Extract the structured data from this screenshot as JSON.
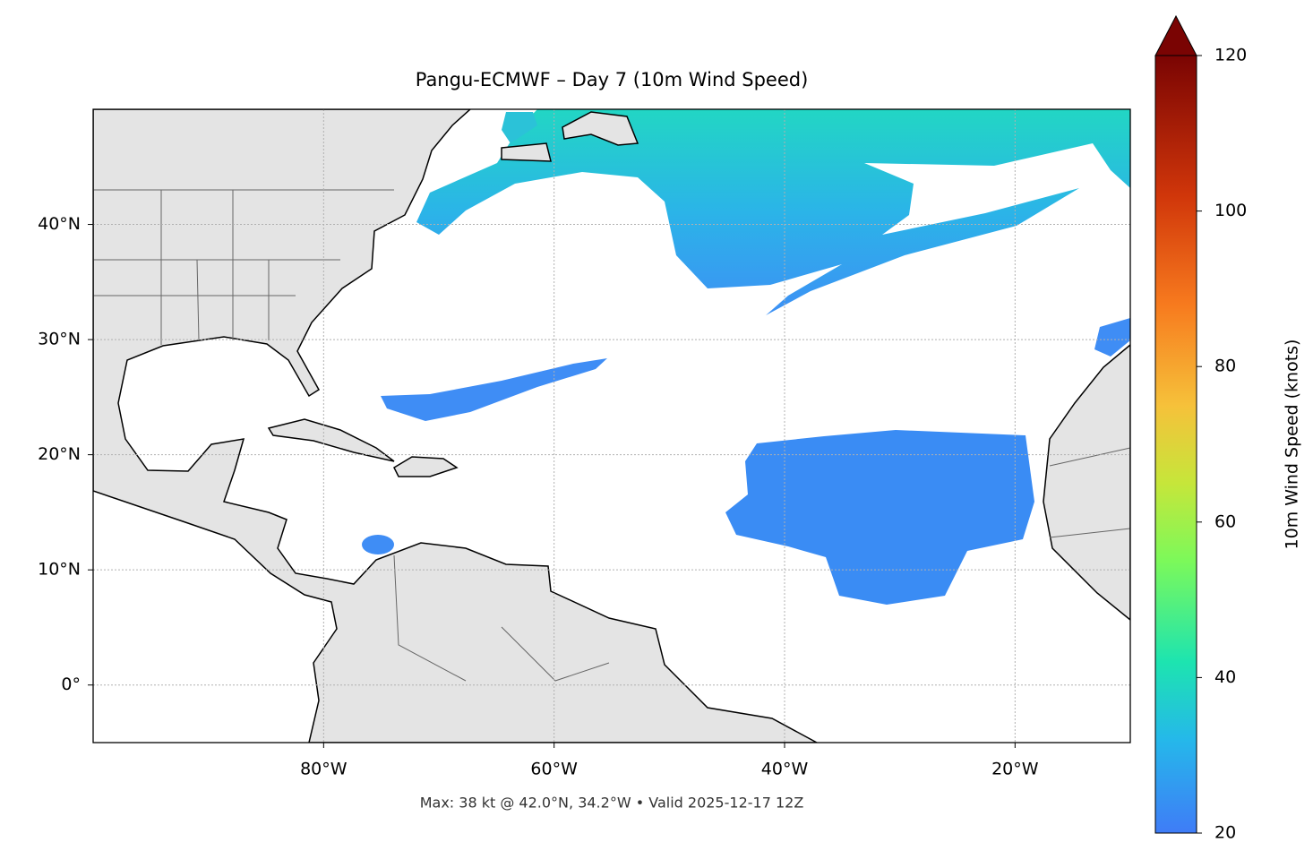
{
  "title": "Pangu-ECMWF – Day 7 (10m Wind Speed)",
  "map": {
    "xlim": [
      -100,
      -10
    ],
    "ylim": [
      -5,
      50
    ],
    "xticks": [
      {
        "value": -80,
        "label": "80°W"
      },
      {
        "value": -60,
        "label": "60°W"
      },
      {
        "value": -40,
        "label": "40°W"
      },
      {
        "value": -20,
        "label": "20°W"
      }
    ],
    "yticks": [
      {
        "value": 0,
        "label": "0°"
      },
      {
        "value": 10,
        "label": "10°N"
      },
      {
        "value": 20,
        "label": "20°N"
      },
      {
        "value": 30,
        "label": "30°N"
      },
      {
        "value": 40,
        "label": "40°N"
      }
    ],
    "grid": true
  },
  "colorbar": {
    "label": "10m Wind Speed (knots)",
    "lim": [
      20,
      120
    ],
    "ticks": [
      20,
      40,
      60,
      80,
      100,
      120
    ]
  },
  "footer": "Max: 38 kt @ 42.0°N, 34.2°W • Valid 2025-12-17 12Z"
}
